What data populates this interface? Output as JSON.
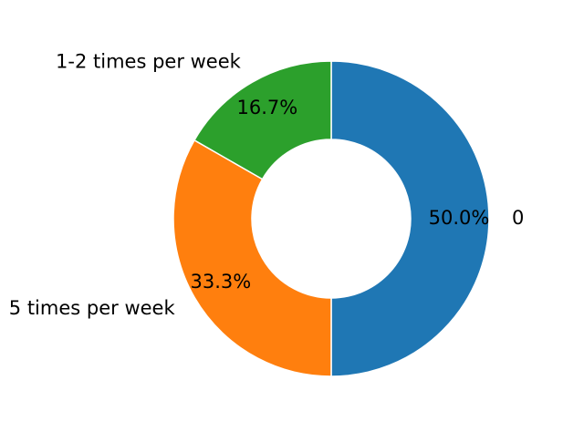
{
  "chart_data": {
    "type": "pie",
    "style": "donut",
    "title": "",
    "categories": [
      "0",
      "5 times per week",
      "1-2 times per week"
    ],
    "values": [
      50.0,
      33.3,
      16.7
    ],
    "percent_labels": [
      "50.0%",
      "33.3%",
      "16.7%"
    ],
    "colors": [
      "#1f77b4",
      "#ff7f0e",
      "#2ca02c"
    ],
    "start_angle_deg": 90,
    "direction": "clockwise",
    "legend": "none"
  }
}
